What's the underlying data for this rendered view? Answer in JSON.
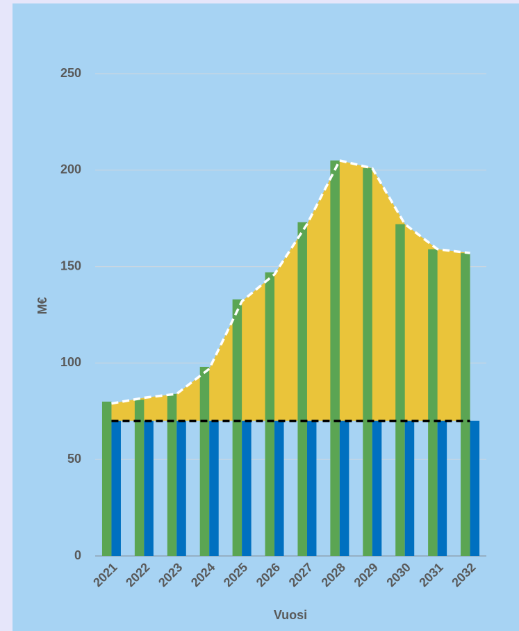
{
  "chart_data": {
    "type": "combo",
    "categories": [
      "2021",
      "2022",
      "2023",
      "2024",
      "2025",
      "2026",
      "2027",
      "2028",
      "2029",
      "2030",
      "2031",
      "2032"
    ],
    "series": [
      {
        "type": "bar",
        "color": "#5ba553",
        "values": [
          80,
          81,
          84,
          98,
          133,
          147,
          173,
          205,
          201,
          172,
          159,
          157
        ]
      },
      {
        "type": "bar",
        "color": "#0070c0",
        "values": [
          70,
          70,
          70,
          70,
          70,
          70,
          70,
          70,
          70,
          70,
          70,
          70
        ]
      },
      {
        "type": "line",
        "color": "#ffffff",
        "fill": "#eac43a",
        "dash": true,
        "values": [
          79,
          82,
          84,
          97,
          132,
          146,
          172,
          205,
          201,
          172,
          159,
          157
        ]
      },
      {
        "type": "line",
        "color": "#000000",
        "dash": true,
        "values": [
          70,
          70,
          70,
          70,
          70,
          70,
          70,
          70,
          70,
          70,
          70,
          70
        ]
      }
    ],
    "ylabel": "M€",
    "xlabel": "Vuosi",
    "ylim": [
      0,
      250
    ],
    "yticks": [
      0,
      50,
      100,
      150,
      200,
      250
    ],
    "grid": true
  }
}
